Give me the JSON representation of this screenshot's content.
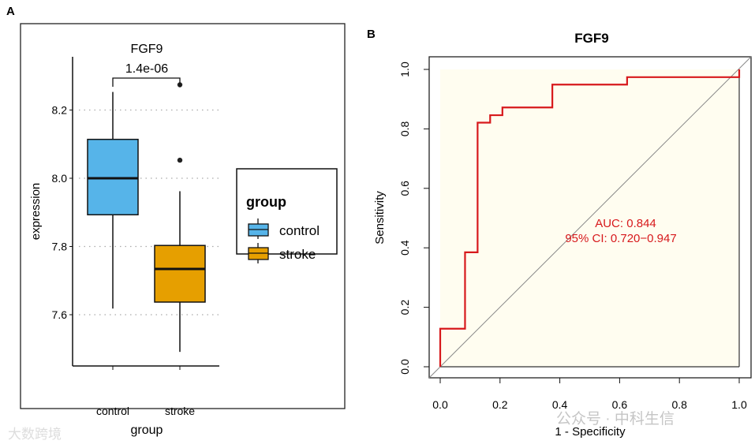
{
  "chart_data": [
    {
      "panel_label": "A",
      "type": "boxplot",
      "title": "FGF9",
      "pvalue_label": "1.4e-06",
      "xlabel": "group",
      "ylabel": "expression",
      "ylim": [
        7.45,
        8.33
      ],
      "yticks": [
        "7.6",
        "7.8",
        "8.0",
        "8.2"
      ],
      "ytick_values": [
        7.6,
        7.8,
        8.0,
        8.2
      ],
      "grid": "horizontal dotted",
      "categories": [
        "control",
        "stroke"
      ],
      "boxes": [
        {
          "name": "control",
          "whisker_low": 7.618,
          "q1": 7.893,
          "median": 8.0,
          "q3": 8.114,
          "whisker_high": 8.253,
          "outliers": [],
          "color": "#56B4E9"
        },
        {
          "name": "stroke",
          "whisker_low": 7.491,
          "q1": 7.637,
          "median": 7.734,
          "q3": 7.803,
          "whisker_high": 7.962,
          "outliers": [
            8.053,
            8.274
          ],
          "color": "#E69F00"
        }
      ],
      "legend": {
        "title": "group",
        "entries": [
          "control",
          "stroke"
        ],
        "placement": "right"
      }
    },
    {
      "panel_label": "B",
      "type": "line",
      "title": "FGF9",
      "xlabel": "1 - Specificity",
      "ylabel": "Sensitivity",
      "xlim": [
        0,
        1
      ],
      "ylim": [
        0,
        1
      ],
      "xticks": [
        "0.0",
        "0.2",
        "0.4",
        "0.6",
        "0.8",
        "1.0"
      ],
      "yticks": [
        "0.0",
        "0.2",
        "0.4",
        "0.6",
        "0.8",
        "1.0"
      ],
      "tick_values": [
        0,
        0.2,
        0.4,
        0.6,
        0.8,
        1.0
      ],
      "series": [
        {
          "name": "ROC",
          "color": "#D7191C",
          "x": [
            0,
            0,
            0.083,
            0.083,
            0.125,
            0.125,
            0.167,
            0.167,
            0.208,
            0.208,
            0.375,
            0.375,
            0.625,
            0.625,
            1,
            1
          ],
          "y": [
            0,
            0.128,
            0.128,
            0.385,
            0.385,
            0.821,
            0.821,
            0.846,
            0.846,
            0.872,
            0.872,
            0.949,
            0.949,
            0.974,
            0.974,
            1
          ]
        }
      ],
      "annotations": [
        "AUC: 0.844",
        "95% CI: 0.720−0.947"
      ]
    }
  ],
  "watermarks": [
    "大数跨境",
    "公众号 · 中科生信"
  ]
}
